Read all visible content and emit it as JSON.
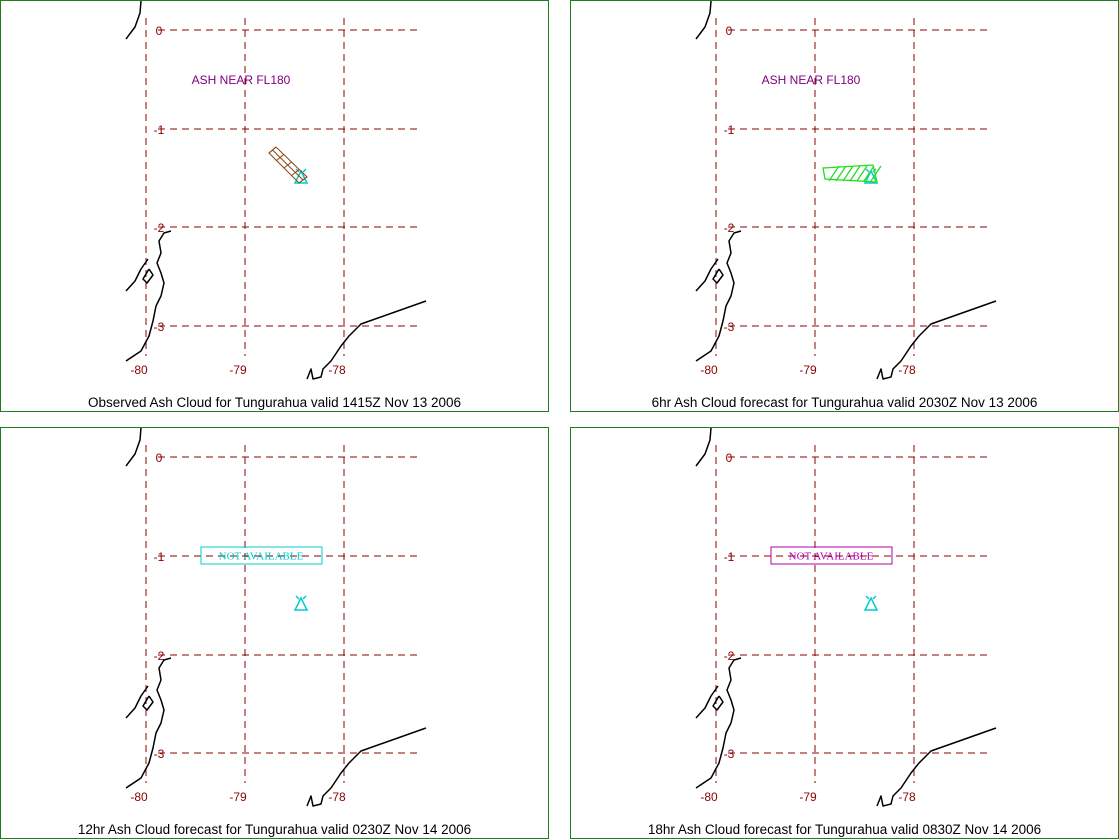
{
  "panels": [
    {
      "caption": "Observed Ash Cloud for Tungurahua valid 1415Z Nov 13 2006",
      "ash_label": "ASH NEAR FL180",
      "ash_color": "#8b4513",
      "ash_style": "grid",
      "not_available": "",
      "na_color": ""
    },
    {
      "caption": "6hr Ash Cloud forecast for Tungurahua valid 2030Z Nov 13 2006",
      "ash_label": "ASH NEAR FL180",
      "ash_color": "#22dd22",
      "ash_style": "hatch",
      "not_available": "",
      "na_color": ""
    },
    {
      "caption": "12hr Ash Cloud forecast for Tungurahua valid 0230Z Nov 14 2006",
      "ash_label": "",
      "ash_color": "",
      "ash_style": "none",
      "not_available": "NOT AVAILABLE",
      "na_color": "#00cccc"
    },
    {
      "caption": "18hr Ash Cloud forecast for Tungurahua valid 0830Z Nov 14 2006",
      "ash_label": "",
      "ash_color": "",
      "ash_style": "none",
      "not_available": "NOT AVAILABLE",
      "na_color": "#b000b0"
    }
  ],
  "lat_labels": [
    "0",
    "-1",
    "-2",
    "-3"
  ],
  "lon_labels": [
    "-80",
    "-79",
    "-78"
  ],
  "colors": {
    "border": "#1e7d1e",
    "grid": "#8b0000",
    "coastline": "#000000",
    "volcano": "#00cccc"
  },
  "icons": {
    "volcano": "volcano-triangle-icon"
  }
}
